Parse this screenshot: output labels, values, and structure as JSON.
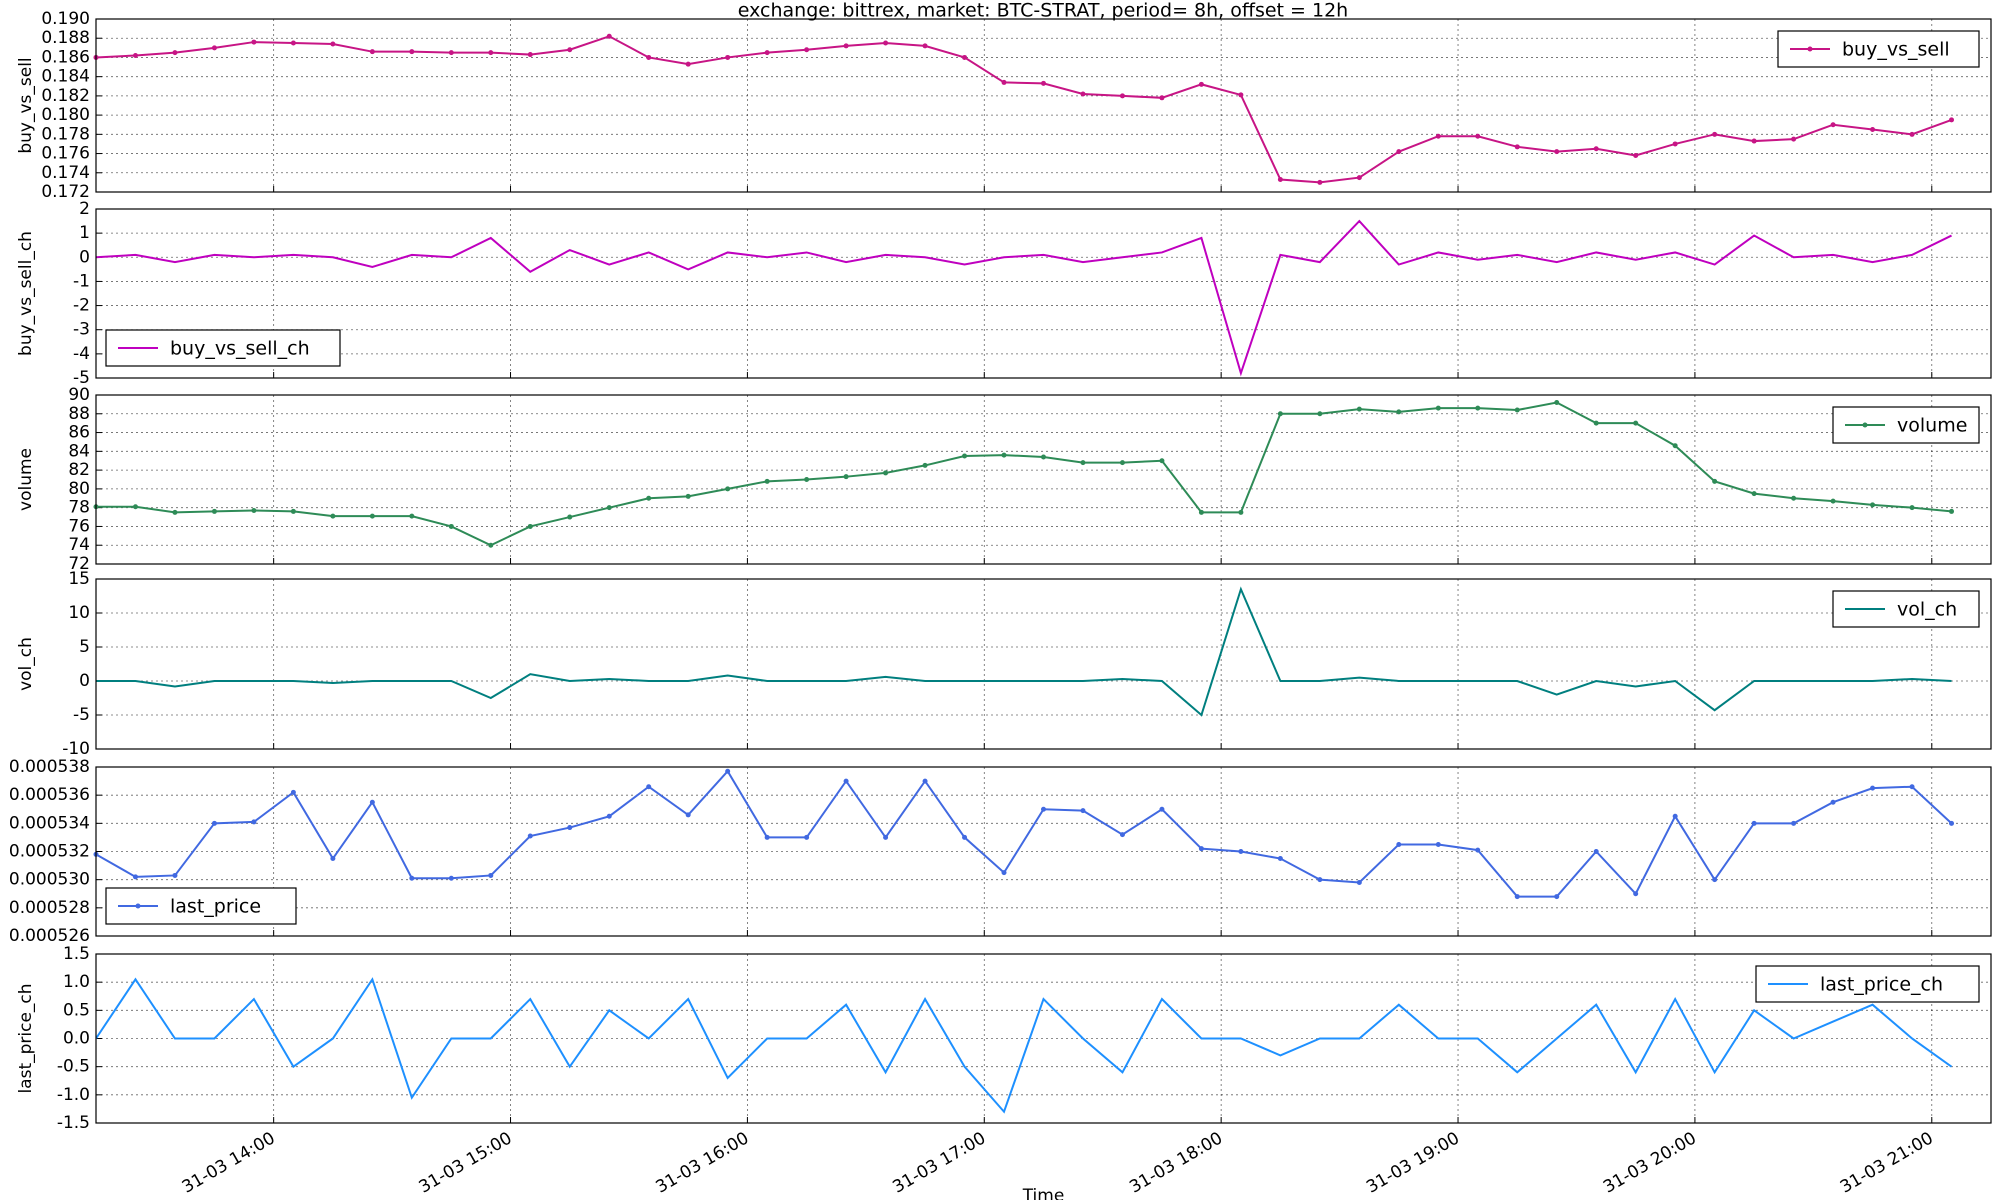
{
  "chart_data": [
    {
      "type": "line",
      "title": "exchange:  bittrex,   market: BTC-STRAT,    period= 8h,  offset = 12h",
      "ylabel": "buy_vs_sell",
      "legend": "upper right",
      "markers": true,
      "grid": true,
      "x": [
        "31-03 13:15",
        "31-03 13:25",
        "31-03 13:35",
        "31-03 13:45",
        "31-03 13:55",
        "31-03 14:05",
        "31-03 14:15",
        "31-03 14:25",
        "31-03 14:35",
        "31-03 14:45",
        "31-03 14:55",
        "31-03 15:05",
        "31-03 15:15",
        "31-03 15:25",
        "31-03 15:35",
        "31-03 15:45",
        "31-03 15:55",
        "31-03 16:05",
        "31-03 16:15",
        "31-03 16:25",
        "31-03 16:35",
        "31-03 16:45",
        "31-03 16:55",
        "31-03 17:05",
        "31-03 17:15",
        "31-03 17:25",
        "31-03 17:35",
        "31-03 17:45",
        "31-03 17:55",
        "31-03 18:05",
        "31-03 18:15",
        "31-03 18:25",
        "31-03 18:35",
        "31-03 18:45",
        "31-03 18:55",
        "31-03 19:05",
        "31-03 19:15",
        "31-03 19:25",
        "31-03 19:35",
        "31-03 19:45",
        "31-03 19:55",
        "31-03 20:05",
        "31-03 20:15",
        "31-03 20:25",
        "31-03 20:35",
        "31-03 20:45",
        "31-03 20:55",
        "31-03 21:05"
      ],
      "xlim": [
        "31-03 13:15",
        "31-03 21:15"
      ],
      "series": [
        {
          "name": "buy_vs_sell",
          "color": "#c71585",
          "values": [
            0.186,
            0.1862,
            0.1865,
            0.187,
            0.1876,
            0.1875,
            0.1874,
            0.1866,
            0.1866,
            0.1865,
            0.1865,
            0.1863,
            0.1868,
            0.1882,
            0.186,
            0.1853,
            0.186,
            0.1865,
            0.1868,
            0.1872,
            0.1875,
            0.1872,
            0.186,
            0.1834,
            0.1833,
            0.1822,
            0.182,
            0.1818,
            0.1832,
            0.1821,
            0.1733,
            0.173,
            0.1735,
            0.1762,
            0.1778,
            0.1778,
            0.1767,
            0.1762,
            0.1765,
            0.1758,
            0.177,
            0.178,
            0.1773,
            0.1775,
            0.179,
            0.1785,
            0.178,
            0.1795
          ]
        }
      ],
      "ylim": [
        0.172,
        0.19
      ],
      "yticks": [
        0.172,
        0.174,
        0.176,
        0.178,
        {
          "value": 0.18,
          "label": "0.180"
        },
        0.182,
        0.184,
        0.186,
        0.188,
        {
          "value": 0.19,
          "label": "0.190"
        }
      ]
    },
    {
      "type": "line",
      "ylabel": "buy_vs_sell_ch",
      "legend": "lower left",
      "markers": false,
      "grid": true,
      "x": [
        "31-03 13:15",
        "31-03 13:25",
        "31-03 13:35",
        "31-03 13:45",
        "31-03 13:55",
        "31-03 14:05",
        "31-03 14:15",
        "31-03 14:25",
        "31-03 14:35",
        "31-03 14:45",
        "31-03 14:55",
        "31-03 15:05",
        "31-03 15:15",
        "31-03 15:25",
        "31-03 15:35",
        "31-03 15:45",
        "31-03 15:55",
        "31-03 16:05",
        "31-03 16:15",
        "31-03 16:25",
        "31-03 16:35",
        "31-03 16:45",
        "31-03 16:55",
        "31-03 17:05",
        "31-03 17:15",
        "31-03 17:25",
        "31-03 17:35",
        "31-03 17:45",
        "31-03 17:55",
        "31-03 18:05",
        "31-03 18:15",
        "31-03 18:25",
        "31-03 18:35",
        "31-03 18:45",
        "31-03 18:55",
        "31-03 19:05",
        "31-03 19:15",
        "31-03 19:25",
        "31-03 19:35",
        "31-03 19:45",
        "31-03 19:55",
        "31-03 20:05",
        "31-03 20:15",
        "31-03 20:25",
        "31-03 20:35",
        "31-03 20:45",
        "31-03 20:55",
        "31-03 21:05"
      ],
      "xlim": [
        "31-03 13:15",
        "31-03 21:15"
      ],
      "series": [
        {
          "name": "buy_vs_sell_ch",
          "color": "#bf00bf",
          "values": [
            0,
            0.1,
            -0.2,
            0.1,
            0,
            0.1,
            0,
            -0.4,
            0.1,
            0,
            0.8,
            -0.6,
            0.3,
            -0.3,
            0.2,
            -0.5,
            0.2,
            0,
            0.2,
            -0.2,
            0.1,
            0,
            -0.3,
            0,
            0.1,
            -0.2,
            0,
            0.2,
            0.8,
            -4.8,
            0.1,
            -0.2,
            1.5,
            -0.3,
            0.2,
            -0.1,
            0.1,
            -0.2,
            0.2,
            -0.1,
            0.2,
            -0.3,
            0.9,
            0,
            0.1,
            -0.2,
            0.1,
            0.9
          ]
        }
      ],
      "ylim": [
        -5,
        2
      ],
      "yticks": [
        -5,
        -4,
        -3,
        -2,
        -1,
        0,
        1,
        2
      ]
    },
    {
      "type": "line",
      "ylabel": "volume",
      "legend": "upper right",
      "markers": true,
      "grid": true,
      "x": [
        "31-03 13:15",
        "31-03 13:25",
        "31-03 13:35",
        "31-03 13:45",
        "31-03 13:55",
        "31-03 14:05",
        "31-03 14:15",
        "31-03 14:25",
        "31-03 14:35",
        "31-03 14:45",
        "31-03 14:55",
        "31-03 15:05",
        "31-03 15:15",
        "31-03 15:25",
        "31-03 15:35",
        "31-03 15:45",
        "31-03 15:55",
        "31-03 16:05",
        "31-03 16:15",
        "31-03 16:25",
        "31-03 16:35",
        "31-03 16:45",
        "31-03 16:55",
        "31-03 17:05",
        "31-03 17:15",
        "31-03 17:25",
        "31-03 17:35",
        "31-03 17:45",
        "31-03 17:55",
        "31-03 18:05",
        "31-03 18:15",
        "31-03 18:25",
        "31-03 18:35",
        "31-03 18:45",
        "31-03 18:55",
        "31-03 19:05",
        "31-03 19:15",
        "31-03 19:25",
        "31-03 19:35",
        "31-03 19:45",
        "31-03 19:55",
        "31-03 20:05",
        "31-03 20:15",
        "31-03 20:25",
        "31-03 20:35",
        "31-03 20:45",
        "31-03 20:55",
        "31-03 21:05"
      ],
      "xlim": [
        "31-03 13:15",
        "31-03 21:15"
      ],
      "series": [
        {
          "name": "volume",
          "color": "#2e8b57",
          "values": [
            78.1,
            78.1,
            77.5,
            77.6,
            77.7,
            77.6,
            77.1,
            77.1,
            77.1,
            76.0,
            74.0,
            76.0,
            77.0,
            78.0,
            79.0,
            79.2,
            80.0,
            80.8,
            81.0,
            81.3,
            81.7,
            82.5,
            83.5,
            83.6,
            83.4,
            82.8,
            82.8,
            83.0,
            77.5,
            77.5,
            88.0,
            88.0,
            88.5,
            88.2,
            88.6,
            88.6,
            88.4,
            89.2,
            87.0,
            87.0,
            84.6,
            80.8,
            79.5,
            79.0,
            78.7,
            78.3,
            78.0,
            77.6
          ]
        }
      ],
      "ylim": [
        72,
        90
      ],
      "yticks": [
        72,
        74,
        76,
        78,
        80,
        82,
        84,
        86,
        88,
        90
      ]
    },
    {
      "type": "line",
      "ylabel": "vol_ch",
      "legend": "upper right",
      "markers": false,
      "grid": true,
      "x": [
        "31-03 13:15",
        "31-03 13:25",
        "31-03 13:35",
        "31-03 13:45",
        "31-03 13:55",
        "31-03 14:05",
        "31-03 14:15",
        "31-03 14:25",
        "31-03 14:35",
        "31-03 14:45",
        "31-03 14:55",
        "31-03 15:05",
        "31-03 15:15",
        "31-03 15:25",
        "31-03 15:35",
        "31-03 15:45",
        "31-03 15:55",
        "31-03 16:05",
        "31-03 16:15",
        "31-03 16:25",
        "31-03 16:35",
        "31-03 16:45",
        "31-03 16:55",
        "31-03 17:05",
        "31-03 17:15",
        "31-03 17:25",
        "31-03 17:35",
        "31-03 17:45",
        "31-03 17:55",
        "31-03 18:05",
        "31-03 18:15",
        "31-03 18:25",
        "31-03 18:35",
        "31-03 18:45",
        "31-03 18:55",
        "31-03 19:05",
        "31-03 19:15",
        "31-03 19:25",
        "31-03 19:35",
        "31-03 19:45",
        "31-03 19:55",
        "31-03 20:05",
        "31-03 20:15",
        "31-03 20:25",
        "31-03 20:35",
        "31-03 20:45",
        "31-03 20:55",
        "31-03 21:05"
      ],
      "xlim": [
        "31-03 13:15",
        "31-03 21:15"
      ],
      "series": [
        {
          "name": "vol_ch",
          "color": "#007f7f",
          "values": [
            0,
            0,
            -0.8,
            0,
            0,
            0,
            -0.3,
            0,
            0,
            0,
            -2.5,
            1.0,
            0,
            0.3,
            0,
            0,
            0.8,
            0,
            0,
            0,
            0.6,
            0,
            0,
            0,
            0,
            0,
            0.3,
            0,
            -5.0,
            13.5,
            0,
            0,
            0.5,
            0,
            0,
            0,
            0,
            -2.0,
            0,
            -0.8,
            0,
            -4.3,
            0,
            0,
            0,
            0,
            0.3,
            0
          ]
        }
      ],
      "ylim": [
        -10,
        15
      ],
      "yticks": [
        -10,
        -5,
        0,
        5,
        10,
        15
      ]
    },
    {
      "type": "line",
      "legend": "lower left",
      "markers": true,
      "grid": true,
      "x": [
        "31-03 13:15",
        "31-03 13:25",
        "31-03 13:35",
        "31-03 13:45",
        "31-03 13:55",
        "31-03 14:05",
        "31-03 14:15",
        "31-03 14:25",
        "31-03 14:35",
        "31-03 14:45",
        "31-03 14:55",
        "31-03 15:05",
        "31-03 15:15",
        "31-03 15:25",
        "31-03 15:35",
        "31-03 15:45",
        "31-03 15:55",
        "31-03 16:05",
        "31-03 16:15",
        "31-03 16:25",
        "31-03 16:35",
        "31-03 16:45",
        "31-03 16:55",
        "31-03 17:05",
        "31-03 17:15",
        "31-03 17:25",
        "31-03 17:35",
        "31-03 17:45",
        "31-03 17:55",
        "31-03 18:05",
        "31-03 18:15",
        "31-03 18:25",
        "31-03 18:35",
        "31-03 18:45",
        "31-03 18:55",
        "31-03 19:05",
        "31-03 19:15",
        "31-03 19:25",
        "31-03 19:35",
        "31-03 19:45",
        "31-03 19:55",
        "31-03 20:05",
        "31-03 20:15",
        "31-03 20:25",
        "31-03 20:35",
        "31-03 20:45",
        "31-03 20:55",
        "31-03 21:05"
      ],
      "xlim": [
        "31-03 13:15",
        "31-03 21:15"
      ],
      "series": [
        {
          "name": "last_price",
          "color": "#4169e1",
          "values": [
            0.0005318,
            0.0005302,
            0.0005303,
            0.000534,
            0.0005341,
            0.0005362,
            0.0005315,
            0.0005355,
            0.0005301,
            0.0005301,
            0.0005303,
            0.0005331,
            0.0005337,
            0.0005345,
            0.0005366,
            0.0005346,
            0.0005377,
            0.000533,
            0.000533,
            0.000537,
            0.000533,
            0.000537,
            0.000533,
            0.0005305,
            0.000535,
            0.0005349,
            0.0005332,
            0.000535,
            0.0005322,
            0.000532,
            0.0005315,
            0.00053,
            0.0005298,
            0.0005325,
            0.0005325,
            0.0005321,
            0.0005288,
            0.0005288,
            0.000532,
            0.000529,
            0.0005345,
            0.00053,
            0.000534,
            0.000534,
            0.0005355,
            0.0005365,
            0.0005366,
            0.000534
          ]
        }
      ],
      "ylim": [
        0.000526,
        0.000538
      ],
      "yticks": [
        0.000526,
        0.000528,
        {
          "value": 0.00053,
          "label": "0.000530"
        },
        0.000532,
        0.000534,
        0.000536,
        0.000538
      ]
    },
    {
      "type": "line",
      "ylabel": "last_price_ch",
      "xlabel": "Time",
      "legend": "upper right",
      "markers": false,
      "grid": true,
      "x": [
        "31-03 13:15",
        "31-03 13:25",
        "31-03 13:35",
        "31-03 13:45",
        "31-03 13:55",
        "31-03 14:05",
        "31-03 14:15",
        "31-03 14:25",
        "31-03 14:35",
        "31-03 14:45",
        "31-03 14:55",
        "31-03 15:05",
        "31-03 15:15",
        "31-03 15:25",
        "31-03 15:35",
        "31-03 15:45",
        "31-03 15:55",
        "31-03 16:05",
        "31-03 16:15",
        "31-03 16:25",
        "31-03 16:35",
        "31-03 16:45",
        "31-03 16:55",
        "31-03 17:05",
        "31-03 17:15",
        "31-03 17:25",
        "31-03 17:35",
        "31-03 17:45",
        "31-03 17:55",
        "31-03 18:05",
        "31-03 18:15",
        "31-03 18:25",
        "31-03 18:35",
        "31-03 18:45",
        "31-03 18:55",
        "31-03 19:05",
        "31-03 19:15",
        "31-03 19:25",
        "31-03 19:35",
        "31-03 19:45",
        "31-03 19:55",
        "31-03 20:05",
        "31-03 20:15",
        "31-03 20:25",
        "31-03 20:35",
        "31-03 20:45",
        "31-03 20:55",
        "31-03 21:05"
      ],
      "xlim": [
        "31-03 13:15",
        "31-03 21:15"
      ],
      "xticks": [
        "31-03 14:00",
        "31-03 15:00",
        "31-03 16:00",
        "31-03 17:00",
        "31-03 18:00",
        "31-03 19:00",
        "31-03 20:00",
        "31-03 21:00"
      ],
      "series": [
        {
          "name": "last_price_ch",
          "color": "#1e90ff",
          "values": [
            0,
            1.05,
            0,
            0,
            0.7,
            -0.5,
            0,
            1.05,
            -1.05,
            0,
            0,
            0.7,
            -0.5,
            0.5,
            0,
            0.7,
            -0.7,
            0,
            0,
            0.6,
            -0.6,
            0.7,
            -0.5,
            -1.3,
            0.7,
            0,
            -0.6,
            0.7,
            0,
            0,
            -0.3,
            0,
            0,
            0.6,
            0,
            0,
            -0.6,
            0,
            0.6,
            -0.6,
            0.7,
            -0.6,
            0.5,
            0,
            0.3,
            0.6,
            0,
            -0.5
          ]
        }
      ],
      "ylim": [
        -1.5,
        1.5
      ],
      "yticks": [
        -1.5,
        {
          "value": -1.0,
          "label": "-1.0"
        },
        -0.5,
        {
          "value": 0.0,
          "label": "0.0"
        },
        0.5,
        {
          "value": 1.0,
          "label": "1.0"
        },
        1.5
      ]
    }
  ]
}
